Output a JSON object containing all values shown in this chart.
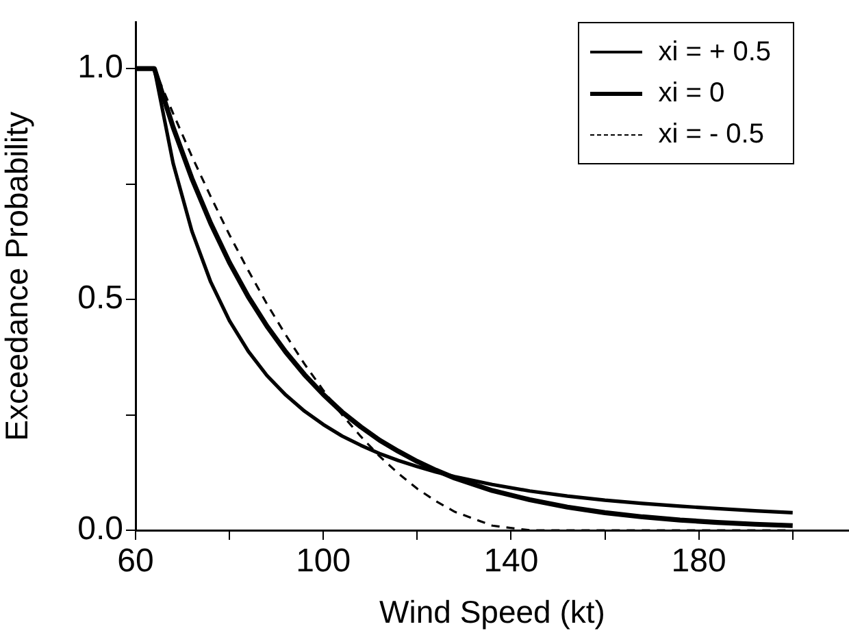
{
  "chart_data": {
    "type": "line",
    "xlabel": "Wind Speed (kt)",
    "ylabel": "Exceedance Probability",
    "xlim": [
      60,
      212
    ],
    "xticks": [
      60,
      {
        "value": 80,
        "label": null
      },
      100,
      {
        "value": 120,
        "label": null
      },
      140,
      {
        "value": 160,
        "label": null
      },
      180,
      {
        "value": 200,
        "label": null
      }
    ],
    "ylim": [
      0,
      1.1
    ],
    "yticks": [
      {
        "value": 0,
        "label": "0.0"
      },
      {
        "value": 0.25,
        "label": null
      },
      {
        "value": 0.5,
        "label": "0.5"
      },
      {
        "value": 0.75,
        "label": null
      },
      {
        "value": 1,
        "label": "1.0"
      }
    ],
    "grid": false,
    "legend": "top right",
    "marker": "none",
    "x": [
      60,
      64,
      68,
      72,
      76,
      80,
      84,
      88,
      92,
      96,
      100,
      104,
      108,
      112,
      116,
      120,
      124,
      128,
      136,
      144,
      152,
      160,
      168,
      176,
      184,
      192,
      200
    ],
    "series": [
      {
        "name": "xi = + 0.5",
        "color": "#000000",
        "line_style": "solid",
        "values": [
          1,
          1,
          0.795,
          0.648,
          0.538,
          0.454,
          0.388,
          0.335,
          0.293,
          0.258,
          0.229,
          0.204,
          0.184,
          0.166,
          0.151,
          0.138,
          0.126,
          0.116,
          0.099,
          0.085,
          0.074,
          0.065,
          0.058,
          0.052,
          0.047,
          0.042,
          0.038
        ]
      },
      {
        "name": "xi = 0",
        "color": "#000000",
        "line_style": "solid",
        "values": [
          1,
          1,
          0.873,
          0.762,
          0.665,
          0.58,
          0.506,
          0.442,
          0.386,
          0.337,
          0.294,
          0.256,
          0.224,
          0.195,
          0.171,
          0.149,
          0.13,
          0.113,
          0.086,
          0.066,
          0.05,
          0.038,
          0.029,
          0.022,
          0.017,
          0.013,
          0.01
        ]
      },
      {
        "name": "xi = - 0.5",
        "color": "#000000",
        "line_style": "dashed",
        "values": [
          1,
          1,
          0.903,
          0.81,
          0.723,
          0.64,
          0.563,
          0.49,
          0.423,
          0.36,
          0.303,
          0.25,
          0.203,
          0.16,
          0.123,
          0.09,
          0.063,
          0.04,
          0.01,
          0,
          0,
          0,
          0,
          0,
          0,
          0,
          0
        ]
      }
    ]
  }
}
